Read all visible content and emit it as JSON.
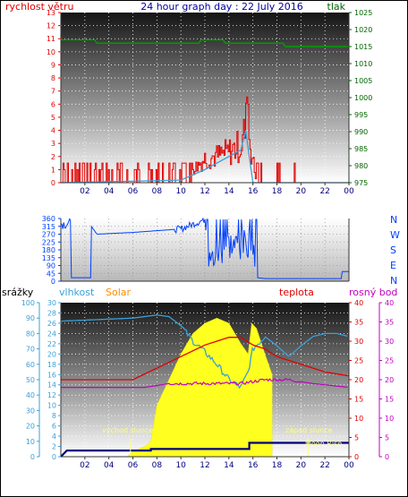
{
  "header": {
    "left_label": "rychlost větru",
    "title": "24 hour graph day : 22 July 2016",
    "right_label": "tlak"
  },
  "colors": {
    "red": "#e00000",
    "green": "#006400",
    "blue": "#0040ff",
    "navy": "#000080",
    "orange": "#ff8c00",
    "magenta": "#c000c0",
    "cyan": "#3aa0d8",
    "yellow": "#ffff20",
    "grid": "#ffffff"
  },
  "chart_data": [
    {
      "type": "line",
      "name": "wind-pressure",
      "x_ticks": [
        "02",
        "04",
        "06",
        "08",
        "10",
        "12",
        "14",
        "16",
        "18",
        "20",
        "22",
        "00"
      ],
      "y_left": {
        "label": "rychlost větru",
        "ticks": [
          0,
          1,
          2,
          3,
          4,
          5,
          6,
          7,
          8,
          9,
          10,
          11,
          12,
          13
        ],
        "range": [
          0,
          13
        ]
      },
      "y_right": {
        "label": "tlak",
        "ticks": [
          975,
          980,
          985,
          990,
          995,
          1000,
          1005,
          1010,
          1015,
          1020,
          1025
        ],
        "range": [
          975,
          1025
        ]
      },
      "pressure": [
        [
          0,
          1017
        ],
        [
          2.8,
          1017
        ],
        [
          3,
          1016
        ],
        [
          11.5,
          1016
        ],
        [
          11.7,
          1017
        ],
        [
          13.5,
          1017
        ],
        [
          13.7,
          1016
        ],
        [
          18.5,
          1016
        ],
        [
          18.7,
          1015
        ],
        [
          24,
          1015
        ]
      ],
      "wind_speed_base": [
        [
          0,
          0
        ],
        [
          10,
          0.2
        ],
        [
          12,
          1
        ],
        [
          13,
          1.5
        ],
        [
          14,
          2
        ],
        [
          15,
          2.5
        ],
        [
          15.4,
          4
        ],
        [
          15.7,
          2
        ],
        [
          16,
          0
        ],
        [
          24,
          0
        ]
      ],
      "wind_gust_envelope": [
        [
          0,
          1.5
        ],
        [
          11,
          1.5
        ],
        [
          12,
          2.8
        ],
        [
          13,
          3
        ],
        [
          14,
          3.5
        ],
        [
          15,
          4.3
        ],
        [
          15.5,
          7
        ],
        [
          15.8,
          4
        ],
        [
          16.2,
          0.5
        ],
        [
          24,
          0
        ]
      ]
    },
    {
      "type": "line",
      "name": "wind-direction",
      "y_left": {
        "ticks": [
          0,
          45,
          90,
          135,
          180,
          225,
          270,
          315,
          360
        ],
        "range": [
          0,
          360
        ]
      },
      "y_right": {
        "ticks": [
          "N",
          "W",
          "S",
          "E",
          "N"
        ]
      },
      "direction": [
        [
          0,
          320
        ],
        [
          0.8,
          90
        ],
        [
          0.8,
          20
        ],
        [
          2.5,
          20
        ],
        [
          2.5,
          320
        ],
        [
          3,
          270
        ],
        [
          6,
          280
        ],
        [
          10,
          300
        ],
        [
          12.2,
          360
        ],
        [
          12.2,
          90
        ],
        [
          13,
          160
        ],
        [
          14,
          210
        ],
        [
          15,
          200
        ],
        [
          16,
          240
        ],
        [
          16.4,
          20
        ],
        [
          17,
          15
        ],
        [
          23.4,
          15
        ],
        [
          23.4,
          55
        ],
        [
          24,
          55
        ]
      ]
    },
    {
      "type": "area",
      "name": "rain-humidity-solar-temperature-dewpoint",
      "x_ticks": [
        "02",
        "04",
        "06",
        "08",
        "10",
        "12",
        "14",
        "16",
        "18",
        "20",
        "22",
        "00"
      ],
      "y_outer_left": {
        "label": "srážky",
        "ticks": [
          0,
          10,
          20,
          30,
          40,
          50,
          60,
          70,
          80,
          90,
          100
        ],
        "range": [
          0,
          100
        ]
      },
      "y_inner_left": {
        "label": "vlhkost",
        "ticks": [
          0,
          2,
          4,
          6,
          8,
          10,
          12,
          14,
          16,
          18,
          20,
          22,
          24,
          26,
          28,
          30
        ],
        "range": [
          0,
          30
        ]
      },
      "y_inner_right": {
        "label": "teplota",
        "ticks": [
          0,
          5,
          10,
          15,
          20,
          25,
          30,
          35,
          40
        ],
        "range": [
          0,
          40
        ]
      },
      "series_labels": {
        "solar": "Solar",
        "temperature": "teplota",
        "dewpoint": "rosný bod"
      },
      "annotations": {
        "sunrise": "východ slunce",
        "sunset": "západ slunce",
        "moonrise": "Moon Rise"
      },
      "humidity": [
        [
          0,
          88
        ],
        [
          3,
          89
        ],
        [
          6,
          90
        ],
        [
          8,
          92
        ],
        [
          9,
          91
        ],
        [
          10,
          85
        ],
        [
          11,
          75
        ],
        [
          12,
          68
        ],
        [
          13,
          60
        ],
        [
          14,
          50
        ],
        [
          15,
          45
        ],
        [
          15.6,
          55
        ],
        [
          16,
          70
        ],
        [
          17,
          78
        ],
        [
          18,
          72
        ],
        [
          19,
          65
        ],
        [
          20,
          72
        ],
        [
          21,
          78
        ],
        [
          22,
          80
        ],
        [
          23,
          80
        ],
        [
          24,
          78
        ]
      ],
      "temperature": [
        [
          0,
          20
        ],
        [
          3,
          20
        ],
        [
          6,
          20
        ],
        [
          8,
          23
        ],
        [
          10,
          26
        ],
        [
          12,
          29
        ],
        [
          14,
          31
        ],
        [
          15,
          31
        ],
        [
          16,
          29
        ],
        [
          17,
          28
        ],
        [
          18,
          26
        ],
        [
          19,
          25
        ],
        [
          20,
          24
        ],
        [
          22,
          22
        ],
        [
          24,
          21
        ]
      ],
      "dewpoint": [
        [
          0,
          18
        ],
        [
          4,
          18
        ],
        [
          7,
          18
        ],
        [
          9,
          19
        ],
        [
          11,
          19
        ],
        [
          13,
          19
        ],
        [
          15,
          19
        ],
        [
          16,
          19.5
        ],
        [
          17,
          20
        ],
        [
          19,
          20
        ],
        [
          21,
          19
        ],
        [
          24,
          18
        ]
      ],
      "rain": [
        [
          0,
          0
        ],
        [
          0.5,
          4
        ],
        [
          7.5,
          4
        ],
        [
          7.5,
          5
        ],
        [
          15.7,
          5
        ],
        [
          15.7,
          9
        ],
        [
          24,
          9
        ]
      ],
      "solar": [
        [
          5.5,
          0
        ],
        [
          6,
          1
        ],
        [
          7,
          2
        ],
        [
          7.5,
          3
        ],
        [
          8,
          10
        ],
        [
          9,
          15
        ],
        [
          10,
          20
        ],
        [
          11,
          24
        ],
        [
          12,
          26
        ],
        [
          13,
          27
        ],
        [
          14,
          26
        ],
        [
          15,
          22
        ],
        [
          15.6,
          20
        ],
        [
          15.9,
          26
        ],
        [
          16.3,
          25
        ],
        [
          17,
          20
        ],
        [
          17.6,
          16
        ],
        [
          17.6,
          0
        ]
      ]
    }
  ]
}
